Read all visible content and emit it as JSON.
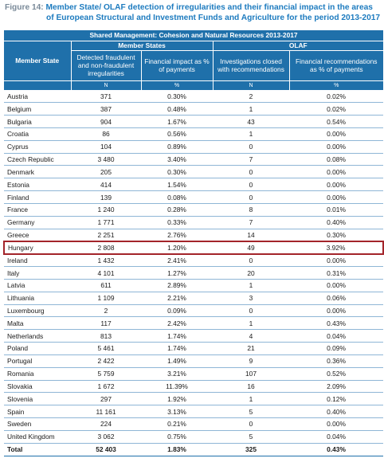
{
  "caption": {
    "label": "Figure 14:",
    "line1": "Member State/ OLAF detection of irregularities and their financial impact in the areas",
    "line2": "of European Structural and Investment Funds and Agriculture for the period 2013-2017"
  },
  "table": {
    "super_header": "Shared Management: Cohesion and Natural Resources 2013-2017",
    "group_member_states": "Member States",
    "group_olaf": "OLAF",
    "col_member_state": "Member State",
    "col_detected": "Detected fraudulent and non-fraudulent irregularities",
    "col_fin_impact": "Financial impact as % of payments",
    "col_investigations": "Investigations closed with recommendations",
    "col_fin_recommendations": "Financial recommendations as % of payments",
    "unit_n1": "N",
    "unit_pct1": "%",
    "unit_n2": "N",
    "unit_pct2": "%",
    "highlight_color": "#a3242a",
    "header_color": "#1f70aa",
    "rows": [
      [
        "Austria",
        "371",
        "0.30%",
        "2",
        "0.02%"
      ],
      [
        "Belgium",
        "387",
        "0.48%",
        "1",
        "0.02%"
      ],
      [
        "Bulgaria",
        "904",
        "1.67%",
        "43",
        "0.54%"
      ],
      [
        "Croatia",
        "86",
        "0.56%",
        "1",
        "0.00%"
      ],
      [
        "Cyprus",
        "104",
        "0.89%",
        "0",
        "0.00%"
      ],
      [
        "Czech Republic",
        "3 480",
        "3.40%",
        "7",
        "0.08%"
      ],
      [
        "Denmark",
        "205",
        "0.30%",
        "0",
        "0.00%"
      ],
      [
        "Estonia",
        "414",
        "1.54%",
        "0",
        "0.00%"
      ],
      [
        "Finland",
        "139",
        "0.08%",
        "0",
        "0.00%"
      ],
      [
        "France",
        "1 240",
        "0.28%",
        "8",
        "0.01%"
      ],
      [
        "Germany",
        "1 771",
        "0.33%",
        "7",
        "0.40%"
      ],
      [
        "Greece",
        "2 251",
        "2.76%",
        "14",
        "0.30%"
      ],
      [
        "Hungary",
        "2 808",
        "1.20%",
        "49",
        "3.92%"
      ],
      [
        "Ireland",
        "1 432",
        "2.41%",
        "0",
        "0.00%"
      ],
      [
        "Italy",
        "4 101",
        "1.27%",
        "20",
        "0.31%"
      ],
      [
        "Latvia",
        "611",
        "2.89%",
        "1",
        "0.00%"
      ],
      [
        "Lithuania",
        "1 109",
        "2.21%",
        "3",
        "0.06%"
      ],
      [
        "Luxembourg",
        "2",
        "0.09%",
        "0",
        "0.00%"
      ],
      [
        "Malta",
        "117",
        "2.42%",
        "1",
        "0.43%"
      ],
      [
        "Netherlands",
        "813",
        "1.74%",
        "4",
        "0.04%"
      ],
      [
        "Poland",
        "5 461",
        "1.74%",
        "21",
        "0.09%"
      ],
      [
        "Portugal",
        "2 422",
        "1.49%",
        "9",
        "0.36%"
      ],
      [
        "Romania",
        "5 759",
        "3.21%",
        "107",
        "0.52%"
      ],
      [
        "Slovakia",
        "1 672",
        "11.39%",
        "16",
        "2.09%"
      ],
      [
        "Slovenia",
        "297",
        "1.92%",
        "1",
        "0.12%"
      ],
      [
        "Spain",
        "11 161",
        "3.13%",
        "5",
        "0.40%"
      ],
      [
        "Sweden",
        "224",
        "0.21%",
        "0",
        "0.00%"
      ],
      [
        "United Kingdom",
        "3 062",
        "0.75%",
        "5",
        "0.04%"
      ]
    ],
    "highlighted_row": "Hungary",
    "total": [
      "Total",
      "52 403",
      "1.83%",
      "325",
      "0.43%"
    ]
  }
}
